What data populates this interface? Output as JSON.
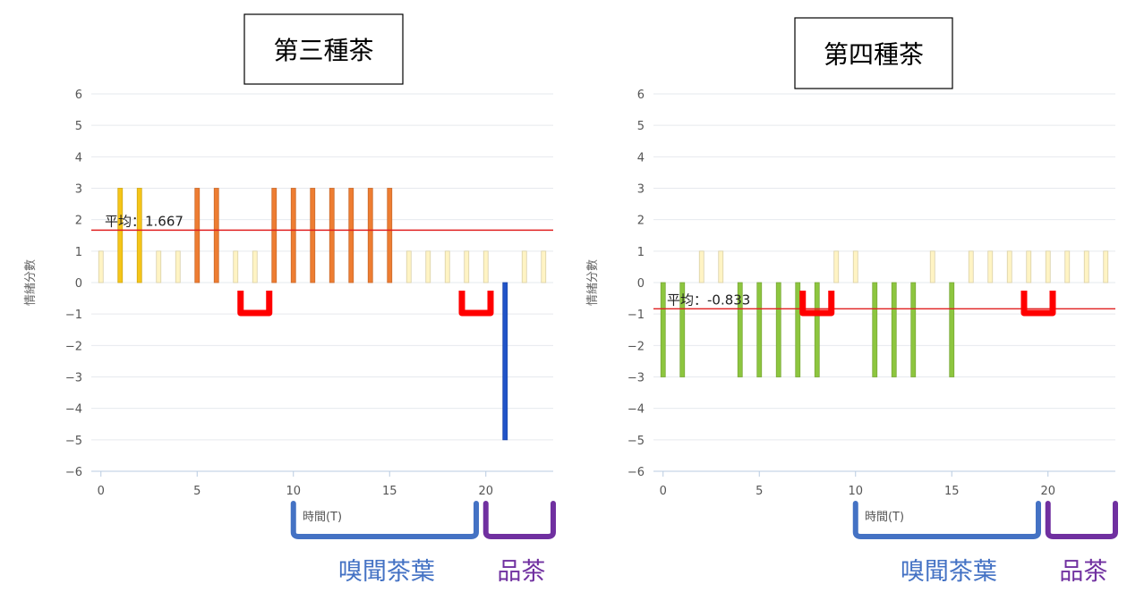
{
  "chart_data": [
    {
      "type": "bar",
      "title": "第三種茶",
      "xlabel": "時間(T)",
      "ylabel": "情緒分數",
      "ylim": [
        -6,
        6
      ],
      "xlim": [
        -0.5,
        23.5
      ],
      "xticks": [
        "0",
        "5",
        "10",
        "15",
        "20"
      ],
      "yticks": [
        "6",
        "5",
        "4",
        "3",
        "2",
        "1",
        "0",
        "−1",
        "−2",
        "−3",
        "−4",
        "−5",
        "−6"
      ],
      "x": [
        0,
        1,
        2,
        3,
        4,
        5,
        6,
        7,
        8,
        9,
        10,
        11,
        12,
        13,
        14,
        15,
        16,
        17,
        18,
        19,
        20,
        21,
        22,
        23
      ],
      "values": [
        1,
        3,
        3,
        1,
        1,
        3,
        3,
        1,
        1,
        3,
        3,
        3,
        3,
        3,
        3,
        3,
        1,
        1,
        1,
        1,
        1,
        -5,
        1,
        1
      ],
      "bar_colors": [
        "#fff4c4",
        "#f5c518",
        "#f5c518",
        "#fff4c4",
        "#fff4c4",
        "#ee7d32",
        "#ee7d32",
        "#fff4c4",
        "#fff4c4",
        "#ee7d32",
        "#ee7d32",
        "#ee7d32",
        "#ee7d32",
        "#ee7d32",
        "#ee7d32",
        "#ee7d32",
        "#fff4c4",
        "#fff4c4",
        "#fff4c4",
        "#fff4c4",
        "#fff4c4",
        "#2154c8",
        "#fff4c4",
        "#fff4c4"
      ],
      "average": {
        "value": 1.667,
        "label": "平均：1.667",
        "color": "#e02020"
      },
      "grid": true,
      "annotations": [
        {
          "text": "嗅聞茶葉",
          "from": 10,
          "to": 19.5,
          "color": "#4472c4"
        },
        {
          "text": "品茶",
          "from": 20,
          "to": 23.5,
          "color": "#7030a0"
        }
      ],
      "markers": [
        {
          "x": 8,
          "color": "#ff0000"
        },
        {
          "x": 19.5,
          "color": "#ff0000"
        }
      ]
    },
    {
      "type": "bar",
      "title": "第四種茶",
      "xlabel": "時間(T)",
      "ylabel": "情緒分數",
      "ylim": [
        -6,
        6
      ],
      "xlim": [
        -0.5,
        23.5
      ],
      "xticks": [
        "0",
        "5",
        "10",
        "15",
        "20"
      ],
      "yticks": [
        "6",
        "5",
        "4",
        "3",
        "2",
        "1",
        "0",
        "−1",
        "−2",
        "−3",
        "−4",
        "−5",
        "−6"
      ],
      "x": [
        0,
        1,
        2,
        3,
        4,
        5,
        6,
        7,
        8,
        9,
        10,
        11,
        12,
        13,
        14,
        15,
        16,
        17,
        18,
        19,
        20,
        21,
        22,
        23
      ],
      "values": [
        -3,
        -3,
        1,
        1,
        -3,
        -3,
        -3,
        -3,
        -3,
        1,
        1,
        -3,
        -3,
        -3,
        1,
        -3,
        1,
        1,
        1,
        1,
        1,
        1,
        1,
        1
      ],
      "bar_colors": [
        "#8dc63f",
        "#8dc63f",
        "#fff4c4",
        "#fff4c4",
        "#8dc63f",
        "#8dc63f",
        "#8dc63f",
        "#8dc63f",
        "#8dc63f",
        "#fff4c4",
        "#fff4c4",
        "#8dc63f",
        "#8dc63f",
        "#8dc63f",
        "#fff4c4",
        "#8dc63f",
        "#fff4c4",
        "#fff4c4",
        "#fff4c4",
        "#fff4c4",
        "#fff4c4",
        "#fff4c4",
        "#fff4c4",
        "#fff4c4"
      ],
      "average": {
        "value": -0.833,
        "label": "平均：-0.833",
        "color": "#e02020"
      },
      "grid": true,
      "annotations": [
        {
          "text": "嗅聞茶葉",
          "from": 10,
          "to": 19.5,
          "color": "#4472c4"
        },
        {
          "text": "品茶",
          "from": 20,
          "to": 23.5,
          "color": "#7030a0"
        }
      ],
      "markers": [
        {
          "x": 8,
          "color": "#ff0000"
        },
        {
          "x": 19.5,
          "color": "#ff0000"
        }
      ]
    }
  ]
}
